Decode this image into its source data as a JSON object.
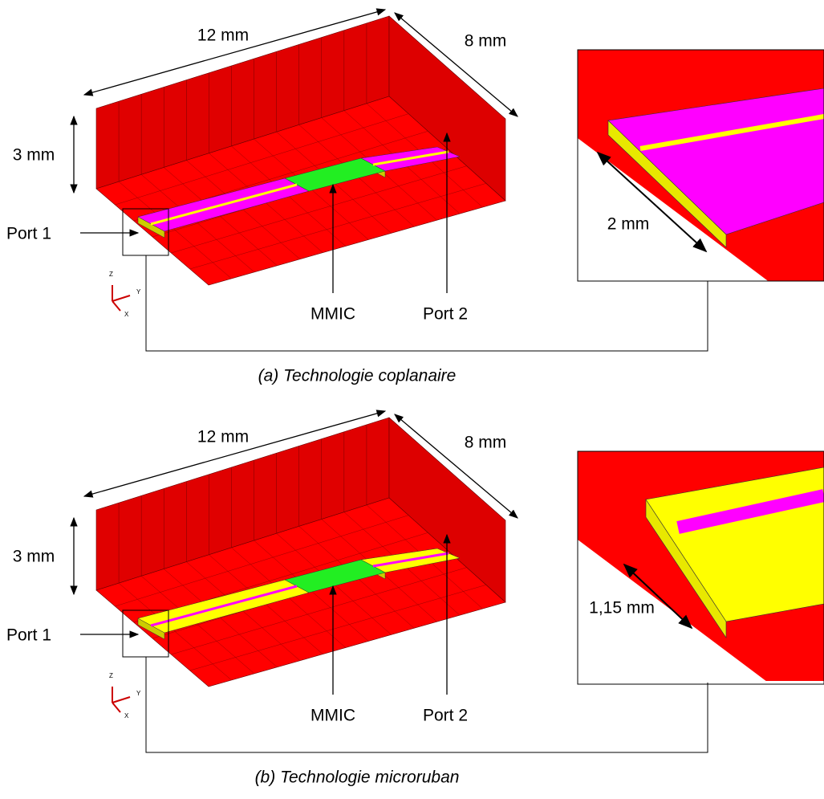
{
  "panels": [
    {
      "dimensions": {
        "length": "12 mm",
        "width": "8 mm",
        "height": "3 mm"
      },
      "labels": {
        "port1": "Port 1",
        "mmic": "MMIC",
        "port2": "Port 2"
      },
      "zoom_label": "2 mm",
      "axes": [
        "Z",
        "Y",
        "X"
      ],
      "caption": "(a) Technologie coplanaire"
    },
    {
      "dimensions": {
        "length": "12 mm",
        "width": "8 mm",
        "height": "3 mm"
      },
      "labels": {
        "port1": "Port 1",
        "mmic": "MMIC",
        "port2": "Port 2"
      },
      "zoom_label": "1,15 mm",
      "axes": [
        "Z",
        "Y",
        "X"
      ],
      "caption": "(b) Technologie microruban"
    }
  ]
}
